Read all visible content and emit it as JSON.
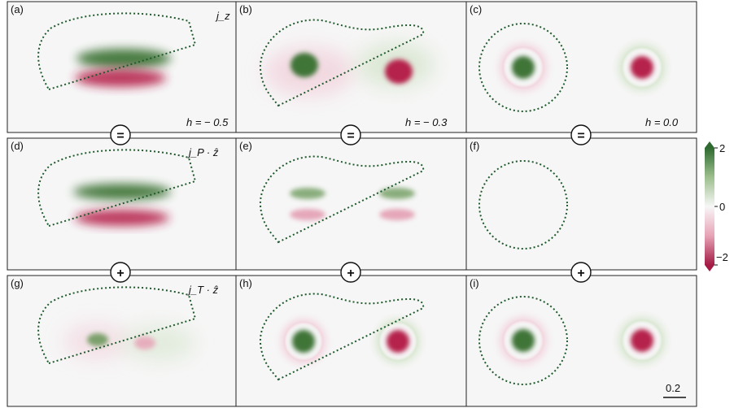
{
  "colors": {
    "positive": "#3f7538",
    "negative": "#b5224c",
    "panel_background": "#f6f6f6",
    "contour": "#1f5a2c"
  },
  "colorbar": {
    "max_label": "2",
    "mid_label": "0",
    "min_label": "−2"
  },
  "operators": {
    "equals": "=",
    "plus": "+"
  },
  "scale_bar": {
    "label": "0.2"
  },
  "panels": [
    {
      "id": "a",
      "label": "(a)",
      "note": "h = − 0.5",
      "quantity": "j_z"
    },
    {
      "id": "b",
      "label": "(b)",
      "note": "h = − 0.3"
    },
    {
      "id": "c",
      "label": "(c)",
      "note": "h = 0.0"
    },
    {
      "id": "d",
      "label": "(d)",
      "quantity": "j_P · ẑ"
    },
    {
      "id": "e",
      "label": "(e)"
    },
    {
      "id": "f",
      "label": "(f)"
    },
    {
      "id": "g",
      "label": "(g)",
      "quantity": "j_T · ẑ"
    },
    {
      "id": "h",
      "label": "(h)"
    },
    {
      "id": "i",
      "label": "(i)"
    }
  ]
}
